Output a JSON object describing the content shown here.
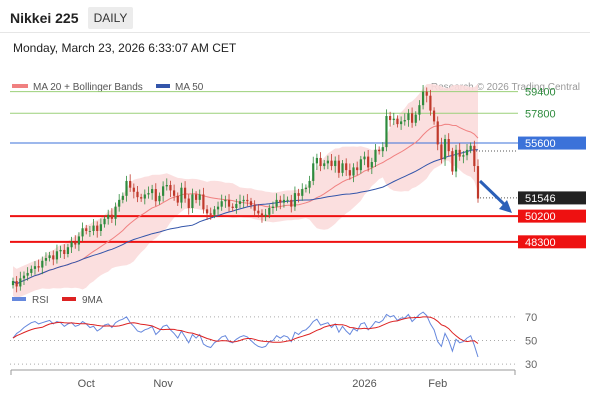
{
  "header": {
    "instrument": "Nikkei 225",
    "interval": "DAILY",
    "datetime": "Monday, March 23, 2026 6:33:07 AM CET"
  },
  "legend": {
    "bb_label": "MA 20 + Bollinger Bands",
    "ma50_label": "MA 50",
    "credit": "Research © 2026 Trading Central",
    "rsi_label": "RSI",
    "rsi_ma_label": "9MA"
  },
  "colors": {
    "up_candle": "#2e8b3d",
    "down_candle": "#c0392b",
    "bb_fill": "#fbdcdc",
    "ma20": "#f08080",
    "ma50": "#3355aa",
    "resistance_green": "#9bd07a",
    "level_blue": "#3b72d9",
    "support_red": "#ee1111",
    "last_price_bg": "#222222",
    "rsi": "#6688dd",
    "rsi_ma": "#dd2222",
    "arrow": "#2b5fb8"
  },
  "chart_data": [
    {
      "type": "candlestick",
      "title": "Nikkei 225",
      "x_ticks": [
        "Oct",
        "Nov",
        "2026",
        "Feb"
      ],
      "ylim": [
        44000,
        61000
      ],
      "grid": false,
      "legend_position": "top-left",
      "levels": [
        {
          "value": 59400,
          "label": "59400",
          "kind": "resistance"
        },
        {
          "value": 57800,
          "label": "57800",
          "kind": "resistance"
        },
        {
          "value": 55600,
          "label": "55600",
          "kind": "pivot"
        },
        {
          "value": 50200,
          "label": "50200",
          "kind": "support"
        },
        {
          "value": 48300,
          "label": "48300",
          "kind": "support"
        }
      ],
      "last_price": {
        "value": 51546,
        "label": "51546"
      },
      "series": [
        {
          "name": "MA 20 + Bollinger Bands",
          "kind": "ma20_bands"
        },
        {
          "name": "MA 50",
          "kind": "ma50"
        }
      ],
      "closes": [
        45400,
        45000,
        45600,
        45800,
        46000,
        46300,
        46500,
        46400,
        46900,
        47100,
        47300,
        47000,
        47600,
        47700,
        47400,
        47900,
        48300,
        48100,
        48700,
        49300,
        49100,
        49100,
        49500,
        49100,
        49600,
        50000,
        50300,
        50000,
        50900,
        51400,
        51700,
        52800,
        52300,
        52000,
        51600,
        51500,
        51800,
        51900,
        52200,
        51300,
        51700,
        52400,
        52500,
        52100,
        51700,
        51200,
        52300,
        51500,
        50800,
        51800,
        51400,
        51800,
        50700,
        50400,
        50300,
        50700,
        50900,
        51300,
        51400,
        50900,
        50800,
        51100,
        51300,
        51400,
        51300,
        51000,
        50600,
        50400,
        50200,
        50300,
        50800,
        50900,
        51400,
        51200,
        51400,
        51400,
        50900,
        51900,
        51700,
        52200,
        52300,
        52800,
        54100,
        54500,
        53900,
        54100,
        54300,
        53900,
        54300,
        53400,
        54100,
        53600,
        53200,
        53800,
        53600,
        54400,
        54600,
        53800,
        54200,
        55100,
        55000,
        55300,
        57600,
        57300,
        57400,
        57000,
        57200,
        57300,
        57800,
        57100,
        57700,
        58400,
        59400,
        59100,
        58000,
        57200,
        55500,
        54400,
        55900,
        55000,
        53500,
        55100,
        54600,
        54700,
        55100,
        55400,
        53900,
        51500
      ]
    },
    {
      "type": "line",
      "title": "RSI",
      "ylim": [
        25,
        80
      ],
      "y_ticks": [
        70,
        50,
        30
      ],
      "series": [
        {
          "name": "RSI"
        },
        {
          "name": "9MA"
        }
      ],
      "rsi": [
        52,
        56,
        58,
        61,
        63,
        65,
        66,
        64,
        65,
        66,
        67,
        64,
        66,
        65,
        62,
        64,
        65,
        62,
        63,
        66,
        64,
        61,
        62,
        58,
        60,
        63,
        64,
        61,
        65,
        67,
        68,
        70,
        65,
        62,
        58,
        57,
        59,
        60,
        62,
        55,
        58,
        62,
        63,
        59,
        56,
        52,
        58,
        53,
        48,
        55,
        52,
        55,
        47,
        45,
        44,
        48,
        50,
        53,
        54,
        49,
        48,
        51,
        53,
        54,
        53,
        50,
        47,
        45,
        44,
        45,
        49,
        50,
        54,
        52,
        54,
        53,
        49,
        57,
        55,
        58,
        59,
        62,
        66,
        68,
        63,
        64,
        65,
        61,
        64,
        57,
        62,
        58,
        55,
        60,
        58,
        64,
        65,
        59,
        62,
        66,
        65,
        67,
        72,
        70,
        71,
        67,
        69,
        69,
        72,
        66,
        69,
        72,
        74,
        71,
        64,
        59,
        49,
        45,
        56,
        50,
        41,
        51,
        48,
        49,
        52,
        54,
        46,
        36
      ]
    }
  ]
}
